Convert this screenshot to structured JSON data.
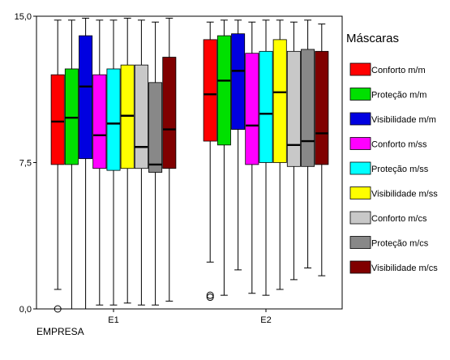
{
  "chart_data": {
    "type": "boxplot",
    "xlabel": "EMPRESA",
    "ylabel": "",
    "ylim": [
      0,
      15
    ],
    "y_ticks": [
      {
        "value": 0,
        "label": "0,0"
      },
      {
        "value": 7.5,
        "label": "7,5"
      },
      {
        "value": 15,
        "label": "15,0"
      }
    ],
    "categories": [
      "E1",
      "E2"
    ],
    "legend": {
      "title": "Máscaras",
      "placement": "right"
    },
    "series": [
      {
        "name": "Conforto m/m",
        "color": "#ff0000",
        "boxes": [
          {
            "min": 1.0,
            "q1": 7.4,
            "median": 9.6,
            "q3": 12.0,
            "max": 14.8,
            "outliers": [
              0.0
            ]
          },
          {
            "min": 2.4,
            "q1": 8.6,
            "median": 11.0,
            "q3": 13.8,
            "max": 14.7,
            "outliers": [
              0.6,
              0.7
            ]
          }
        ]
      },
      {
        "name": "Proteção m/m",
        "color": "#00e000",
        "boxes": [
          {
            "min": 0.0,
            "q1": 7.4,
            "median": 9.8,
            "q3": 12.3,
            "max": 14.8,
            "outliers": []
          },
          {
            "min": 0.7,
            "q1": 8.4,
            "median": 11.7,
            "q3": 14.0,
            "max": 14.8,
            "outliers": []
          }
        ]
      },
      {
        "name": "Visibilidade m/m",
        "color": "#0000e0",
        "boxes": [
          {
            "min": 0.0,
            "q1": 7.7,
            "median": 11.4,
            "q3": 14.0,
            "max": 14.9,
            "outliers": []
          },
          {
            "min": 2.0,
            "q1": 9.2,
            "median": 12.2,
            "q3": 14.1,
            "max": 14.8,
            "outliers": []
          }
        ]
      },
      {
        "name": "Conforto m/ss",
        "color": "#ff00ff",
        "boxes": [
          {
            "min": 0.2,
            "q1": 7.2,
            "median": 8.9,
            "q3": 12.0,
            "max": 14.8,
            "outliers": []
          },
          {
            "min": 0.8,
            "q1": 7.4,
            "median": 9.4,
            "q3": 13.1,
            "max": 14.7,
            "outliers": []
          }
        ]
      },
      {
        "name": "Proteção m/ss",
        "color": "#00ffff",
        "boxes": [
          {
            "min": 0.2,
            "q1": 7.1,
            "median": 9.5,
            "q3": 12.3,
            "max": 14.8,
            "outliers": []
          },
          {
            "min": 0.7,
            "q1": 7.5,
            "median": 10.0,
            "q3": 13.2,
            "max": 14.8,
            "outliers": []
          }
        ]
      },
      {
        "name": "Visibilidade m/ss",
        "color": "#ffff00",
        "boxes": [
          {
            "min": 0.3,
            "q1": 7.2,
            "median": 9.9,
            "q3": 12.5,
            "max": 14.9,
            "outliers": []
          },
          {
            "min": 1.0,
            "q1": 7.5,
            "median": 11.1,
            "q3": 13.8,
            "max": 14.8,
            "outliers": []
          }
        ]
      },
      {
        "name": "Conforto m/cs",
        "color": "#c8c8c8",
        "boxes": [
          {
            "min": 0.2,
            "q1": 7.2,
            "median": 8.3,
            "q3": 12.5,
            "max": 14.8,
            "outliers": []
          },
          {
            "min": 1.5,
            "q1": 7.3,
            "median": 8.4,
            "q3": 13.2,
            "max": 14.7,
            "outliers": []
          }
        ]
      },
      {
        "name": "Proteção m/cs",
        "color": "#888888",
        "boxes": [
          {
            "min": 0.2,
            "q1": 7.0,
            "median": 7.4,
            "q3": 11.6,
            "max": 14.7,
            "outliers": []
          },
          {
            "min": 2.1,
            "q1": 7.3,
            "median": 8.6,
            "q3": 13.3,
            "max": 14.8,
            "outliers": []
          }
        ]
      },
      {
        "name": "Visibilidade m/cs",
        "color": "#800000",
        "boxes": [
          {
            "min": 0.4,
            "q1": 7.2,
            "median": 9.2,
            "q3": 12.9,
            "max": 14.9,
            "outliers": []
          },
          {
            "min": 1.7,
            "q1": 7.4,
            "median": 9.0,
            "q3": 13.2,
            "max": 14.6,
            "outliers": []
          }
        ]
      }
    ]
  }
}
